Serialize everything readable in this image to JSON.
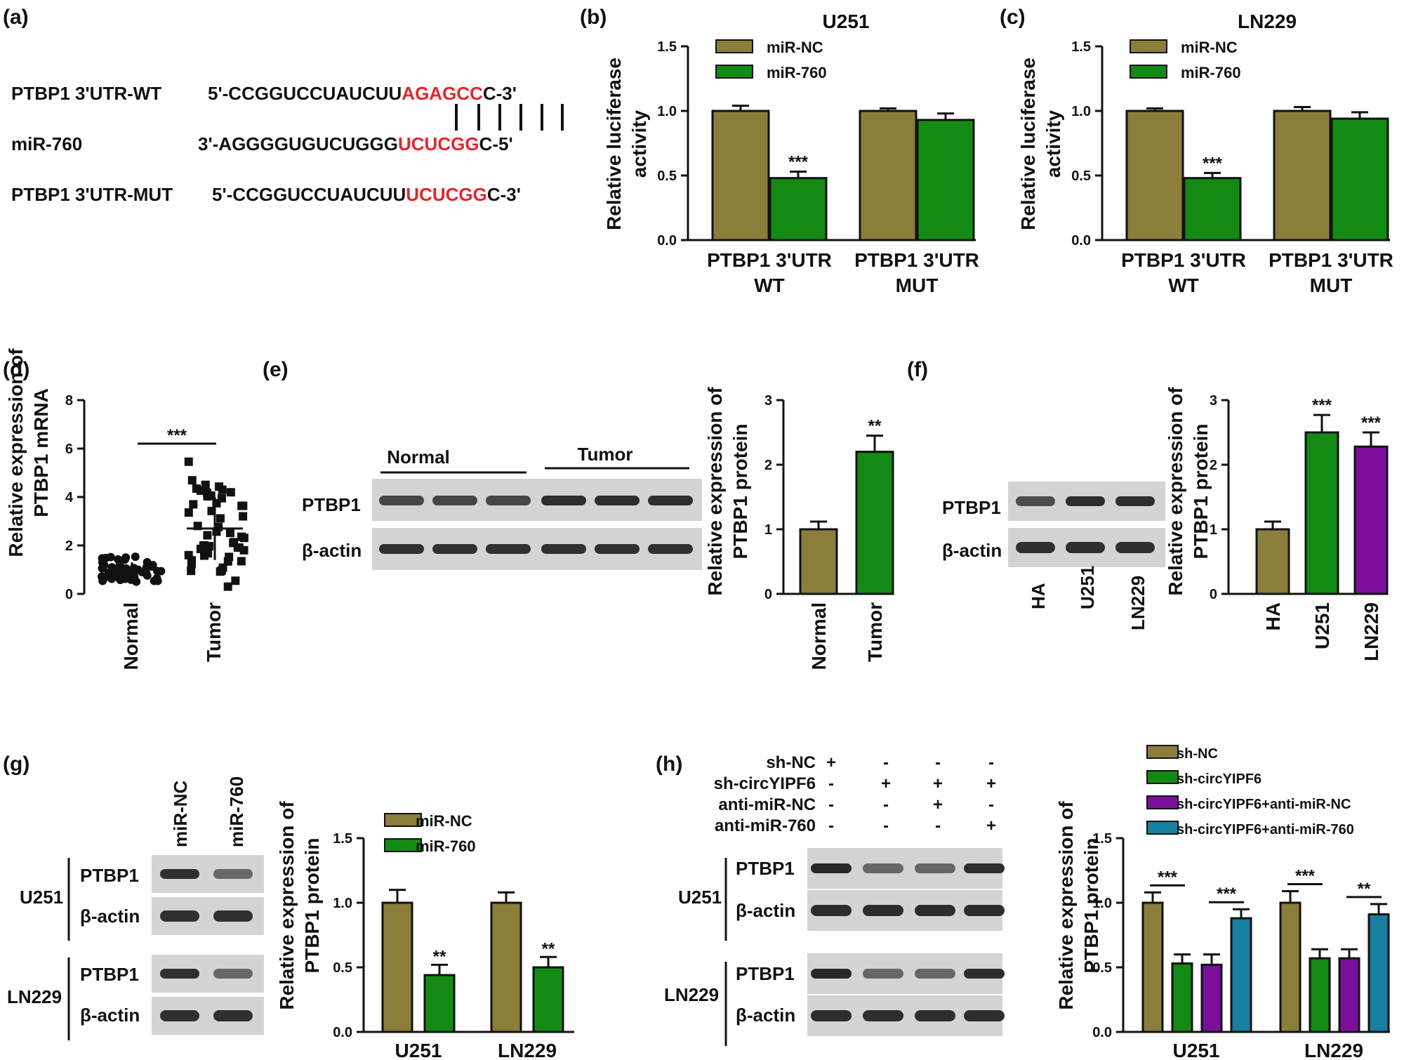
{
  "colors": {
    "olive": "#8B7D3A",
    "green": "#138A13",
    "purple": "#7B0F9C",
    "teal": "#1780A0",
    "red": "#E8242A",
    "axis": "#111111"
  },
  "panel_labels": {
    "a": "(a)",
    "b": "(b)",
    "c": "(c)",
    "d": "(d)",
    "e": "(e)",
    "f": "(f)",
    "g": "(g)",
    "h": "(h)"
  },
  "seq": {
    "wt_label": "PTBP1 3'UTR-WT",
    "wt_pre": "5'-CCGGUCCUAUCUU",
    "wt_hl": "AGAGCC",
    "wt_post": "C-3'",
    "mir_label": "miR-760",
    "mir_pre": "3'-AGGGGUGUCUGGG",
    "mir_hl": "UCUCGG",
    "mir_post": "C-5'",
    "mut_label": "PTBP1 3'UTR-MUT",
    "mut_pre": "5'-CCGGUCCUAUCUU",
    "mut_hl": "UCUCGG",
    "mut_post": "C-3'"
  },
  "blot": {
    "ptbp1": "PTBP1",
    "bactin": "β-actin",
    "e_groups": [
      "Normal",
      "Tumor"
    ],
    "f_lanes": [
      "HA",
      "U251",
      "LN229"
    ],
    "g_lanes": [
      "miR-NC",
      "miR-760"
    ],
    "cells": [
      "U251",
      "LN229"
    ],
    "h_rows": [
      {
        "label": "sh-NC",
        "marks": [
          "+",
          "-",
          "-",
          "-"
        ]
      },
      {
        "label": "sh-circYIPF6",
        "marks": [
          "-",
          "+",
          "+",
          "+"
        ]
      },
      {
        "label": "anti-miR-NC",
        "marks": [
          "-",
          "-",
          "+",
          "-"
        ]
      },
      {
        "label": "anti-miR-760",
        "marks": [
          "-",
          "-",
          "-",
          "+"
        ]
      }
    ]
  },
  "chart_data": [
    {
      "id": "b",
      "type": "bar",
      "title": "U251",
      "ylabel": "Relative luciferase activity",
      "ylim": [
        0,
        1.5
      ],
      "yticks": [
        "0.0",
        "0.5",
        "1.0",
        "1.5"
      ],
      "categories": [
        "PTBP1 3'UTR WT",
        "PTBP1 3'UTR MUT"
      ],
      "series": [
        {
          "name": "miR-NC",
          "values": [
            1.0,
            1.0
          ],
          "errors": [
            0.04,
            0.02
          ]
        },
        {
          "name": "miR-760",
          "values": [
            0.48,
            0.93
          ],
          "errors": [
            0.05,
            0.05
          ]
        }
      ],
      "annotations": [
        {
          "category": 0,
          "series": 1,
          "text": "***"
        }
      ],
      "legend": "top-left"
    },
    {
      "id": "c",
      "type": "bar",
      "title": "LN229",
      "ylabel": "Relative luciferase activity",
      "ylim": [
        0,
        1.5
      ],
      "yticks": [
        "0.0",
        "0.5",
        "1.0",
        "1.5"
      ],
      "categories": [
        "PTBP1 3'UTR WT",
        "PTBP1 3'UTR MUT"
      ],
      "series": [
        {
          "name": "miR-NC",
          "values": [
            1.0,
            1.0
          ],
          "errors": [
            0.02,
            0.03
          ]
        },
        {
          "name": "miR-760",
          "values": [
            0.48,
            0.94
          ],
          "errors": [
            0.04,
            0.05
          ]
        }
      ],
      "annotations": [
        {
          "category": 0,
          "series": 1,
          "text": "***"
        }
      ],
      "legend": "top-left"
    },
    {
      "id": "d",
      "type": "scatter",
      "ylabel": "Relative expression of PTBP1 mRNA",
      "ylim": [
        0,
        8
      ],
      "yticks": [
        "0",
        "2",
        "4",
        "6",
        "8"
      ],
      "categories": [
        "Normal",
        "Tumor"
      ],
      "groups": [
        {
          "name": "Normal",
          "mean": 1.0,
          "sd": 0.3,
          "n": 50
        },
        {
          "name": "Tumor",
          "mean": 2.7,
          "sd": 1.3,
          "n": 50
        }
      ],
      "annotations": [
        {
          "text": "***"
        }
      ]
    },
    {
      "id": "e",
      "type": "bar",
      "ylabel": "Relative expression of PTBP1 protein",
      "ylim": [
        0,
        3
      ],
      "yticks": [
        "0",
        "1",
        "2",
        "3"
      ],
      "categories": [
        "Normal",
        "Tumor"
      ],
      "series": [
        {
          "values": [
            1.0,
            2.2
          ],
          "errors": [
            0.12,
            0.25
          ]
        }
      ],
      "annotations": [
        {
          "category": 1,
          "text": "**"
        }
      ]
    },
    {
      "id": "f",
      "type": "bar",
      "ylabel": "Relative expression of PTBP1 protein",
      "ylim": [
        0,
        3
      ],
      "yticks": [
        "0",
        "1",
        "2",
        "3"
      ],
      "categories": [
        "HA",
        "U251",
        "LN229"
      ],
      "series": [
        {
          "values": [
            1.0,
            2.5,
            2.28
          ],
          "errors": [
            0.12,
            0.27,
            0.22
          ]
        }
      ],
      "annotations": [
        {
          "category": 1,
          "text": "***"
        },
        {
          "category": 2,
          "text": "***"
        }
      ]
    },
    {
      "id": "g",
      "type": "bar",
      "ylabel": "Relative expression of PTBP1 protein",
      "ylim": [
        0,
        1.5
      ],
      "yticks": [
        "0.0",
        "0.5",
        "1.0",
        "1.5"
      ],
      "categories": [
        "U251",
        "LN229"
      ],
      "series": [
        {
          "name": "miR-NC",
          "values": [
            1.0,
            1.0
          ],
          "errors": [
            0.1,
            0.08
          ]
        },
        {
          "name": "miR-760",
          "values": [
            0.44,
            0.5
          ],
          "errors": [
            0.08,
            0.08
          ]
        }
      ],
      "annotations": [
        {
          "category": 0,
          "series": 1,
          "text": "**"
        },
        {
          "category": 1,
          "series": 1,
          "text": "**"
        }
      ],
      "legend": "top-left"
    },
    {
      "id": "h",
      "type": "bar",
      "ylabel": "Relative expression of PTBP1 protein",
      "ylim": [
        0,
        1.5
      ],
      "yticks": [
        "0.0",
        "0.5",
        "1.0",
        "1.5"
      ],
      "categories": [
        "U251",
        "LN229"
      ],
      "series": [
        {
          "name": "sh-NC",
          "values": [
            1.0,
            1.0
          ],
          "errors": [
            0.08,
            0.09
          ]
        },
        {
          "name": "sh-circYIPF6",
          "values": [
            0.53,
            0.57
          ],
          "errors": [
            0.07,
            0.07
          ]
        },
        {
          "name": "sh-circYIPF6+anti-miR-NC",
          "values": [
            0.52,
            0.57
          ],
          "errors": [
            0.08,
            0.07
          ]
        },
        {
          "name": "sh-circYIPF6+anti-miR-760",
          "values": [
            0.88,
            0.91
          ],
          "errors": [
            0.07,
            0.08
          ]
        }
      ],
      "brackets": [
        {
          "category": 0,
          "from": 0,
          "to": 1,
          "text": "***"
        },
        {
          "category": 0,
          "from": 2,
          "to": 3,
          "text": "***"
        },
        {
          "category": 1,
          "from": 0,
          "to": 1,
          "text": "***"
        },
        {
          "category": 1,
          "from": 2,
          "to": 3,
          "text": "**"
        }
      ],
      "legend": "top"
    }
  ]
}
